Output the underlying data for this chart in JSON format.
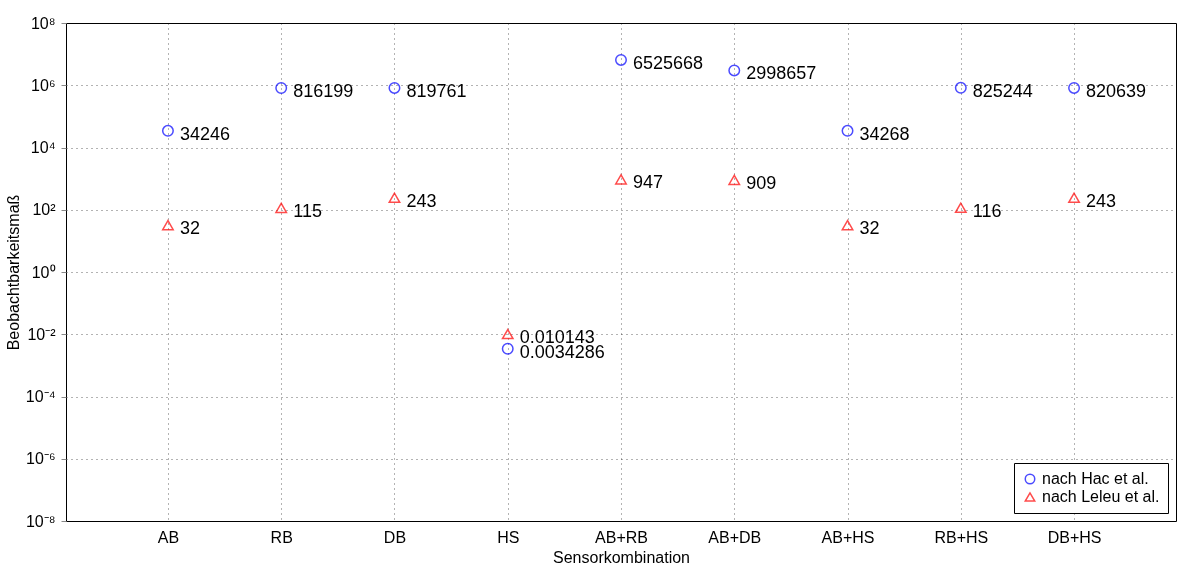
{
  "chart_data": {
    "type": "scatter",
    "xlabel": "Sensorkombination",
    "ylabel": "Beobachtbarkeitsmaß",
    "categories": [
      "AB",
      "RB",
      "DB",
      "HS",
      "AB+RB",
      "AB+DB",
      "AB+HS",
      "RB+HS",
      "DB+HS"
    ],
    "series": [
      {
        "name": "nach Hac et al.",
        "color": "#0000ff",
        "marker": "circle",
        "values": [
          34246,
          816199,
          819761,
          0.0034286,
          6525668,
          2998657,
          34268,
          825244,
          820639
        ]
      },
      {
        "name": "nach Leleu et al.",
        "color": "#ff0000",
        "marker": "triangle",
        "values": [
          32,
          115,
          243,
          0.010143,
          947,
          909,
          32,
          116,
          243
        ]
      }
    ],
    "data_labels": true,
    "log": "y",
    "ylim": [
      1e-08,
      100000000.0
    ],
    "yticks": [
      {
        "value": 1e-08,
        "label": "10⁻⁸"
      },
      {
        "value": 1e-06,
        "label": "10⁻⁶"
      },
      {
        "value": 0.0001,
        "label": "10⁻⁴"
      },
      {
        "value": 0.01,
        "label": "10⁻²"
      },
      {
        "value": 1,
        "label": "10⁰"
      },
      {
        "value": 100,
        "label": "10²"
      },
      {
        "value": 10000,
        "label": "10⁴"
      },
      {
        "value": 1000000,
        "label": "10⁶"
      },
      {
        "value": 100000000,
        "label": "10⁸"
      }
    ],
    "grid": true,
    "legend": "bottom right"
  }
}
